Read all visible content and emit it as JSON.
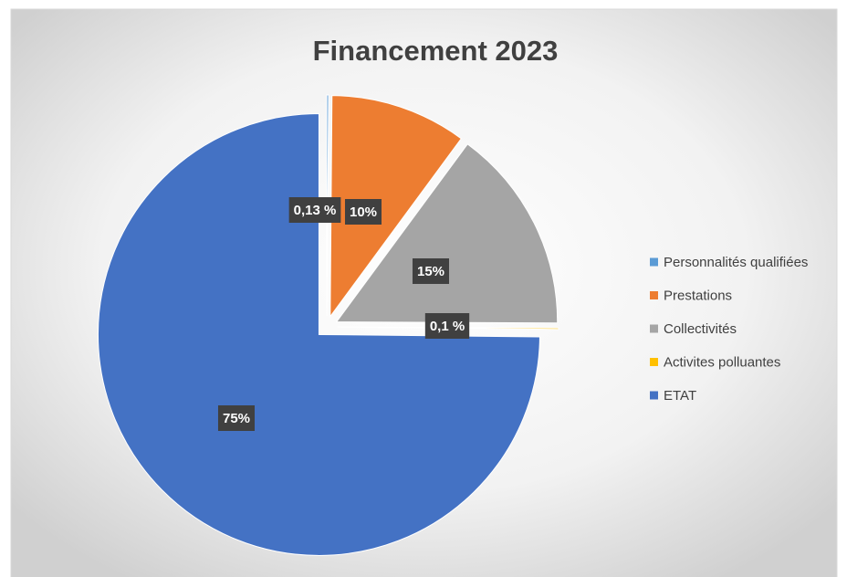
{
  "chart_data": {
    "type": "pie",
    "title": "Financement 2023",
    "categories": [
      "Personnalités qualifiées",
      "Prestations",
      "Collectivités",
      "Activites polluantes",
      "ETAT"
    ],
    "values": [
      0.13,
      10,
      15,
      0.1,
      75
    ],
    "value_labels": [
      "0,13 %",
      "10%",
      "15%",
      "0,1 %",
      "75%"
    ],
    "colors": [
      "#5b9bd5",
      "#ed7d31",
      "#a5a5a5",
      "#ffc000",
      "#4472c4"
    ],
    "legend": "right"
  }
}
